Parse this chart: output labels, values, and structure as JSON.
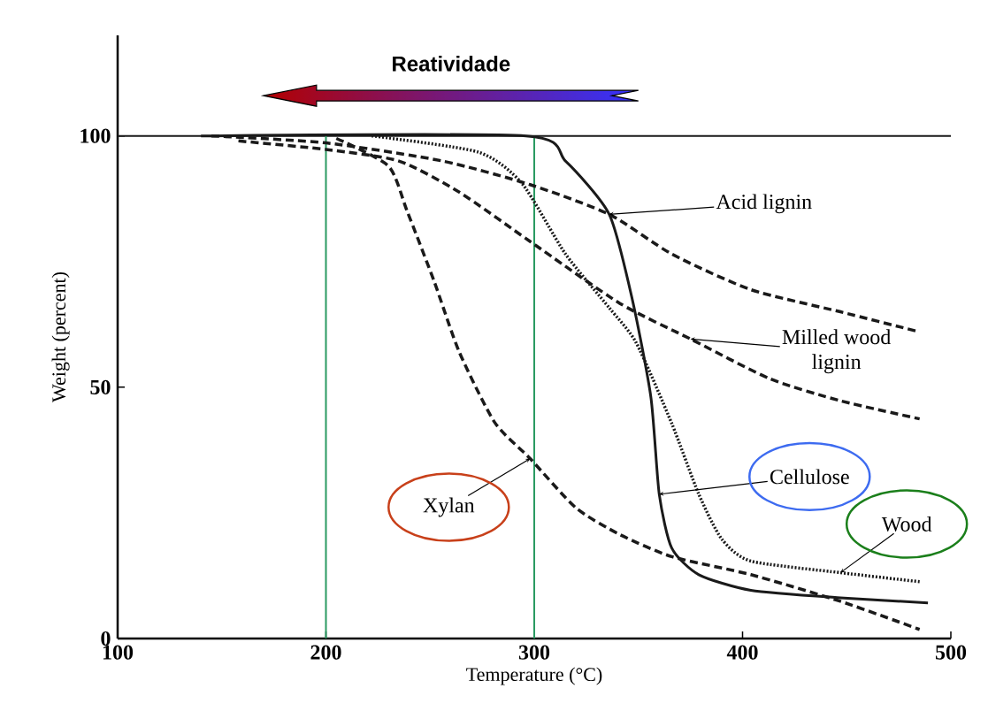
{
  "chart_data": {
    "type": "line",
    "xlabel": "Temperature (°C)",
    "ylabel": "Weight (percent)",
    "xlim": [
      100,
      500
    ],
    "xticks": [
      100,
      200,
      300,
      400,
      500
    ],
    "ylim": [
      0,
      120
    ],
    "yticks": [
      0,
      50,
      100
    ],
    "grid": false,
    "marker": "none",
    "series": [
      {
        "color": "#1a1a1a",
        "line_style": "solid",
        "x": [
          140,
          296,
          315,
          336,
          347,
          356,
          360,
          366,
          379,
          404,
          447,
          489
        ],
        "values": [
          100,
          100,
          95,
          84.4,
          67.6,
          48,
          28.7,
          18,
          12.7,
          9.6,
          8.1,
          7.1
        ]
      },
      {
        "color": "#1a1a1a",
        "line_style": "dashed",
        "x": [
          145,
          200,
          256,
          298,
          336,
          366,
          404,
          447,
          485
        ],
        "values": [
          100,
          98.6,
          95,
          90.3,
          84.4,
          76.5,
          69.4,
          65,
          61
        ]
      },
      {
        "color": "#1a1a1a",
        "line_style": "dashed",
        "x": [
          158,
          200,
          235,
          264,
          298,
          341,
          375,
          413,
          447,
          485
        ],
        "values": [
          99,
          97.3,
          95,
          88.8,
          79,
          66.7,
          59.6,
          51.7,
          47.3,
          43.7
        ]
      },
      {
        "color": "#1a1a1a",
        "line_style": "dashed",
        "x": [
          205,
          230,
          239,
          252,
          264,
          281,
          298,
          320,
          341,
          366,
          404,
          447,
          485
        ],
        "values": [
          99.5,
          94,
          85,
          71,
          57,
          43,
          35.8,
          26,
          20.7,
          16.3,
          12.7,
          7.4,
          1.8
        ]
      },
      {
        "color": "#1a1a1a",
        "line_style": "dotted",
        "x": [
          222,
          273,
          294,
          315,
          336,
          349,
          366,
          379,
          390,
          404,
          447,
          485
        ],
        "values": [
          100,
          96.8,
          90.6,
          76.5,
          65.8,
          58.8,
          42.8,
          28.7,
          19.8,
          15.4,
          13.1,
          11.3
        ]
      }
    ],
    "ref_lines": [
      {
        "axis": "y",
        "value": 100,
        "color": "#1a1a1a",
        "line_style": "solid"
      },
      {
        "axis": "x",
        "value": 200,
        "color": "#2a9a62",
        "line_style": "solid"
      },
      {
        "axis": "x",
        "value": 300,
        "color": "#2a9a62",
        "line_style": "solid"
      }
    ],
    "annotations": [
      "Reatividade",
      {
        "text": "Acid lignin",
        "x": 336,
        "y": 84.4
      },
      {
        "text": "Milled wood lignin",
        "x": 375,
        "y": 59.6
      },
      {
        "text": "Xylan",
        "x": 298,
        "y": 35.8
      },
      {
        "text": "Cellulose",
        "x": 360,
        "y": 28.7
      },
      {
        "text": "Wood",
        "x": 447,
        "y": 13.1
      }
    ]
  }
}
